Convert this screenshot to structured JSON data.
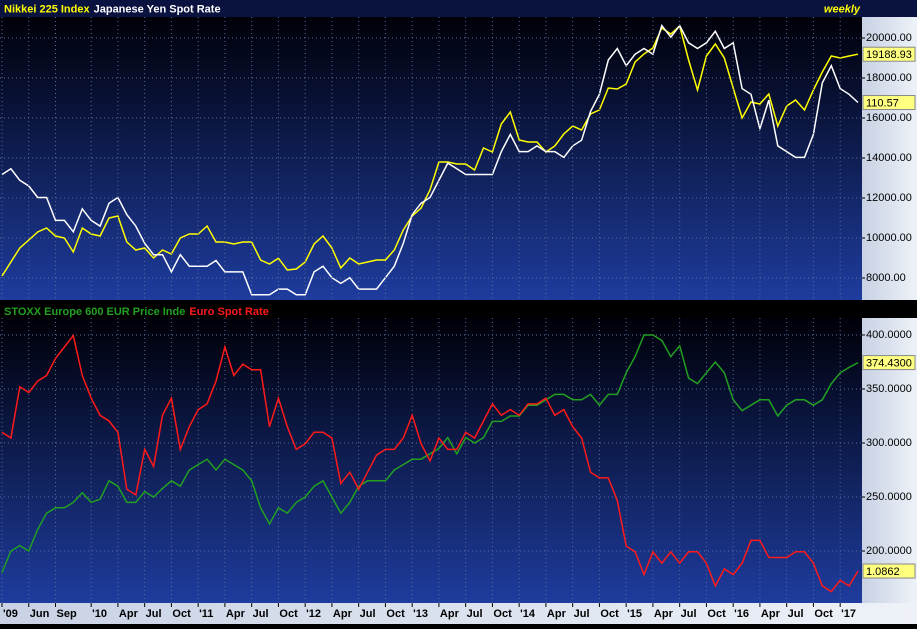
{
  "chart_data": [
    {
      "type": "line",
      "annotation": "weekly",
      "grid": true,
      "show_last_value": true,
      "xlim": [
        "2009-03",
        "2017-03"
      ],
      "x": [
        "2009-03",
        "2009-04",
        "2009-05",
        "2009-06",
        "2009-07",
        "2009-08",
        "2009-09",
        "2009-10",
        "2009-11",
        "2009-12",
        "2010-01",
        "2010-02",
        "2010-03",
        "2010-04",
        "2010-05",
        "2010-06",
        "2010-07",
        "2010-08",
        "2010-09",
        "2010-10",
        "2010-11",
        "2010-12",
        "2011-01",
        "2011-02",
        "2011-03",
        "2011-04",
        "2011-05",
        "2011-06",
        "2011-07",
        "2011-08",
        "2011-09",
        "2011-10",
        "2011-11",
        "2011-12",
        "2012-01",
        "2012-02",
        "2012-03",
        "2012-04",
        "2012-05",
        "2012-06",
        "2012-07",
        "2012-08",
        "2012-09",
        "2012-10",
        "2012-11",
        "2012-12",
        "2013-01",
        "2013-02",
        "2013-03",
        "2013-04",
        "2013-05",
        "2013-06",
        "2013-07",
        "2013-08",
        "2013-09",
        "2013-10",
        "2013-11",
        "2013-12",
        "2014-01",
        "2014-02",
        "2014-03",
        "2014-04",
        "2014-05",
        "2014-06",
        "2014-07",
        "2014-08",
        "2014-09",
        "2014-10",
        "2014-11",
        "2014-12",
        "2015-01",
        "2015-02",
        "2015-03",
        "2015-04",
        "2015-05",
        "2015-06",
        "2015-07",
        "2015-08",
        "2015-09",
        "2015-10",
        "2015-11",
        "2015-12",
        "2016-01",
        "2016-02",
        "2016-03",
        "2016-04",
        "2016-05",
        "2016-06",
        "2016-07",
        "2016-08",
        "2016-09",
        "2016-10",
        "2016-11",
        "2016-12",
        "2017-01",
        "2017-02",
        "2017-03"
      ],
      "ylim": [
        6900,
        21050
      ],
      "yticks": [
        {
          "value": 8000,
          "label": "8000.00"
        },
        {
          "value": 10000,
          "label": "10000.00"
        },
        {
          "value": 12000,
          "label": "12000.00"
        },
        {
          "value": 14000,
          "label": "14000.00"
        },
        {
          "value": 16000,
          "label": "16000.00"
        },
        {
          "value": 18000,
          "label": "18000.00"
        },
        {
          "value": 20000,
          "label": "20000.00"
        }
      ],
      "y2lim": [
        76.1,
        125.5
      ],
      "series": [
        {
          "name": "Nikkei 225 Index",
          "color": "#ffff00",
          "values": [
            8100,
            8800,
            9500,
            9900,
            10300,
            10500,
            10100,
            10000,
            9300,
            10500,
            10200,
            10100,
            11000,
            11100,
            9800,
            9400,
            9500,
            9000,
            9400,
            9200,
            10000,
            10200,
            10200,
            10600,
            9800,
            9800,
            9700,
            9800,
            9800,
            8900,
            8700,
            8990,
            8400,
            8450,
            8800,
            9700,
            10100,
            9500,
            8500,
            9000,
            8700,
            8800,
            8900,
            8900,
            9400,
            10400,
            11100,
            11500,
            12400,
            13800,
            13800,
            13700,
            13700,
            13400,
            14500,
            14300,
            15700,
            16300,
            14900,
            14800,
            14800,
            14300,
            14600,
            15200,
            15600,
            15400,
            16200,
            16400,
            17500,
            17450,
            17700,
            18800,
            19200,
            19500,
            20500,
            20200,
            20600,
            18900,
            17400,
            19100,
            19700,
            19000,
            17500,
            16000,
            16800,
            16700,
            17200,
            15600,
            16600,
            16900,
            16400,
            17400,
            18300,
            19100,
            19000,
            19100,
            19188.93
          ]
        },
        {
          "name": "Japanese Yen Spot Rate",
          "color": "#ffffff",
          "axis": "y2",
          "values": [
            98,
            99,
            97,
            96,
            94,
            94,
            90,
            90,
            88,
            92,
            90,
            89,
            93,
            94,
            91,
            89,
            86,
            84,
            84,
            81,
            84,
            82,
            82,
            82,
            83,
            81,
            81,
            81,
            77,
            77,
            77,
            78,
            78,
            77,
            77,
            81,
            82,
            80,
            79,
            80,
            78,
            78,
            78,
            80,
            82,
            86,
            91,
            93,
            94,
            97,
            100,
            99,
            98,
            98,
            98,
            98,
            102,
            105,
            102,
            102,
            103,
            102,
            102,
            101,
            103,
            104,
            109,
            112,
            118,
            120,
            117,
            119,
            120,
            119,
            124,
            122,
            124,
            121,
            120,
            121,
            123,
            120,
            121,
            113,
            112,
            106,
            111,
            103,
            102,
            101,
            101,
            105,
            114,
            117,
            113,
            112,
            110.57
          ]
        }
      ]
    },
    {
      "type": "line",
      "grid": true,
      "show_last_value": true,
      "xlim": [
        "2009-03",
        "2017-03"
      ],
      "x": [
        "2009-03",
        "2009-04",
        "2009-05",
        "2009-06",
        "2009-07",
        "2009-08",
        "2009-09",
        "2009-10",
        "2009-11",
        "2009-12",
        "2010-01",
        "2010-02",
        "2010-03",
        "2010-04",
        "2010-05",
        "2010-06",
        "2010-07",
        "2010-08",
        "2010-09",
        "2010-10",
        "2010-11",
        "2010-12",
        "2011-01",
        "2011-02",
        "2011-03",
        "2011-04",
        "2011-05",
        "2011-06",
        "2011-07",
        "2011-08",
        "2011-09",
        "2011-10",
        "2011-11",
        "2011-12",
        "2012-01",
        "2012-02",
        "2012-03",
        "2012-04",
        "2012-05",
        "2012-06",
        "2012-07",
        "2012-08",
        "2012-09",
        "2012-10",
        "2012-11",
        "2012-12",
        "2013-01",
        "2013-02",
        "2013-03",
        "2013-04",
        "2013-05",
        "2013-06",
        "2013-07",
        "2013-08",
        "2013-09",
        "2013-10",
        "2013-11",
        "2013-12",
        "2014-01",
        "2014-02",
        "2014-03",
        "2014-04",
        "2014-05",
        "2014-06",
        "2014-07",
        "2014-08",
        "2014-09",
        "2014-10",
        "2014-11",
        "2014-12",
        "2015-01",
        "2015-02",
        "2015-03",
        "2015-04",
        "2015-05",
        "2015-06",
        "2015-07",
        "2015-08",
        "2015-09",
        "2015-10",
        "2015-11",
        "2015-12",
        "2016-01",
        "2016-02",
        "2016-03",
        "2016-04",
        "2016-05",
        "2016-06",
        "2016-07",
        "2016-08",
        "2016-09",
        "2016-10",
        "2016-11",
        "2016-12",
        "2017-01",
        "2017-02",
        "2017-03"
      ],
      "xticks": [
        {
          "value": "2009-03",
          "label": "'09"
        },
        {
          "value": "2009-06",
          "label": "Jun"
        },
        {
          "value": "2009-09",
          "label": "Sep"
        },
        {
          "value": "2010-01",
          "label": "'10"
        },
        {
          "value": "2010-04",
          "label": "Apr"
        },
        {
          "value": "2010-07",
          "label": "Jul"
        },
        {
          "value": "2010-10",
          "label": "Oct"
        },
        {
          "value": "2011-01",
          "label": "'11"
        },
        {
          "value": "2011-04",
          "label": "Apr"
        },
        {
          "value": "2011-07",
          "label": "Jul"
        },
        {
          "value": "2011-10",
          "label": "Oct"
        },
        {
          "value": "2012-01",
          "label": "'12"
        },
        {
          "value": "2012-04",
          "label": "Apr"
        },
        {
          "value": "2012-07",
          "label": "Jul"
        },
        {
          "value": "2012-10",
          "label": "Oct"
        },
        {
          "value": "2013-01",
          "label": "'13"
        },
        {
          "value": "2013-04",
          "label": "Apr"
        },
        {
          "value": "2013-07",
          "label": "Jul"
        },
        {
          "value": "2013-10",
          "label": "Oct"
        },
        {
          "value": "2014-01",
          "label": "'14"
        },
        {
          "value": "2014-04",
          "label": "Apr"
        },
        {
          "value": "2014-07",
          "label": "Jul"
        },
        {
          "value": "2014-10",
          "label": "Oct"
        },
        {
          "value": "2015-01",
          "label": "'15"
        },
        {
          "value": "2015-04",
          "label": "Apr"
        },
        {
          "value": "2015-07",
          "label": "Jul"
        },
        {
          "value": "2015-10",
          "label": "Oct"
        },
        {
          "value": "2016-01",
          "label": "'16"
        },
        {
          "value": "2016-04",
          "label": "Apr"
        },
        {
          "value": "2016-07",
          "label": "Jul"
        },
        {
          "value": "2016-10",
          "label": "Oct"
        },
        {
          "value": "2017-01",
          "label": "'17"
        }
      ],
      "ylim": [
        151.9,
        415.7
      ],
      "yticks": [
        {
          "value": 200,
          "label": "200.0000"
        },
        {
          "value": 250,
          "label": "250.0000"
        },
        {
          "value": 300,
          "label": "300.0000"
        },
        {
          "value": 350,
          "label": "350.0000"
        },
        {
          "value": 400,
          "label": "400.0000"
        }
      ],
      "y2lim": [
        1.03,
        1.531
      ],
      "series": [
        {
          "name": "STOXX Europe 600 EUR Price Inde",
          "color": "#22a022",
          "values": [
            180,
            200,
            205,
            200,
            220,
            235,
            240,
            240,
            245,
            254,
            245,
            248,
            265,
            260,
            245,
            245,
            255,
            250,
            258,
            265,
            260,
            275,
            280,
            285,
            275,
            285,
            280,
            275,
            265,
            240,
            225,
            240,
            235,
            245,
            250,
            260,
            265,
            250,
            235,
            245,
            260,
            265,
            265,
            265,
            275,
            280,
            285,
            285,
            290,
            295,
            305,
            290,
            305,
            300,
            305,
            320,
            320,
            325,
            325,
            335,
            335,
            340,
            345,
            345,
            340,
            340,
            345,
            335,
            345,
            345,
            365,
            380,
            400,
            400,
            395,
            380,
            390,
            360,
            355,
            365,
            375,
            365,
            340,
            330,
            335,
            340,
            340,
            325,
            335,
            340,
            340,
            335,
            340,
            355,
            365,
            370,
            374.43
          ],
          "value_labels": [
            null,
            null,
            null,
            null,
            null,
            null,
            null,
            null,
            null,
            null,
            null,
            null,
            null,
            null,
            null,
            null,
            null,
            null,
            null,
            null,
            null,
            null,
            null,
            null,
            null,
            null,
            null,
            null,
            null,
            null,
            null,
            null,
            null,
            null,
            null,
            null,
            null,
            null,
            null,
            null,
            null,
            null,
            null,
            null,
            null,
            null,
            null,
            null,
            null,
            null,
            null,
            null,
            null,
            null,
            null,
            null,
            null,
            null,
            null,
            null,
            null,
            null,
            null,
            null,
            null,
            null,
            null,
            null,
            null,
            null,
            null,
            null,
            null,
            null,
            null,
            null,
            null,
            null,
            null,
            null,
            null,
            null,
            null,
            null,
            null,
            null,
            null,
            null,
            null,
            null,
            null,
            null,
            null,
            null,
            null,
            null,
            "374.4300"
          ]
        },
        {
          "name": "Euro Spot Rate",
          "color": "#ff1a1a",
          "axis": "y2",
          "values": [
            1.33,
            1.32,
            1.41,
            1.4,
            1.42,
            1.43,
            1.46,
            1.48,
            1.5,
            1.43,
            1.39,
            1.36,
            1.35,
            1.33,
            1.23,
            1.22,
            1.3,
            1.27,
            1.36,
            1.39,
            1.3,
            1.34,
            1.37,
            1.38,
            1.42,
            1.48,
            1.43,
            1.45,
            1.44,
            1.44,
            1.34,
            1.39,
            1.34,
            1.3,
            1.31,
            1.33,
            1.33,
            1.32,
            1.24,
            1.26,
            1.23,
            1.26,
            1.29,
            1.3,
            1.3,
            1.32,
            1.36,
            1.31,
            1.28,
            1.32,
            1.3,
            1.3,
            1.33,
            1.32,
            1.35,
            1.38,
            1.36,
            1.37,
            1.36,
            1.38,
            1.38,
            1.39,
            1.36,
            1.37,
            1.34,
            1.32,
            1.26,
            1.25,
            1.25,
            1.21,
            1.13,
            1.12,
            1.08,
            1.12,
            1.1,
            1.12,
            1.1,
            1.12,
            1.12,
            1.1,
            1.06,
            1.09,
            1.08,
            1.1,
            1.14,
            1.14,
            1.11,
            1.11,
            1.11,
            1.12,
            1.12,
            1.1,
            1.06,
            1.05,
            1.07,
            1.06,
            1.0862
          ]
        }
      ]
    }
  ]
}
